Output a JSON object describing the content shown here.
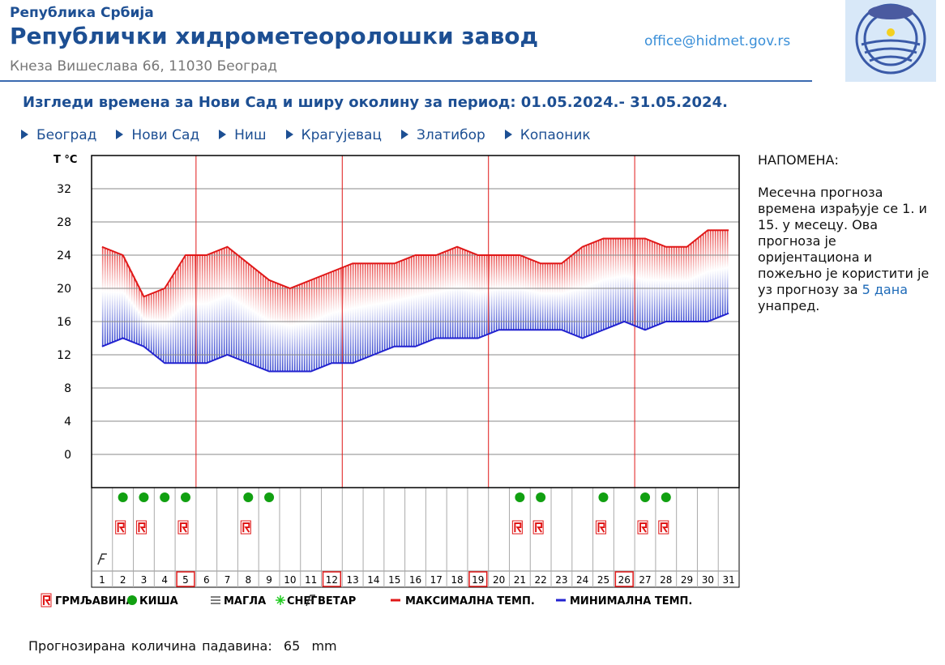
{
  "header": {
    "republic": "Република Србија",
    "institute": "Републички хидрометеоролошки завод",
    "address": "Кнеза Вишеслава 66, 11030 Београд",
    "email": "office@hidmet.gov.rs"
  },
  "title": "Изгледи времена за Нови Сад и ширу околину за период: 01.05.2024.- 31.05.2024.",
  "nav": [
    "Београд",
    "Нови Сад",
    "Ниш",
    "Крагујевац",
    "Златибор",
    "Копаоник"
  ],
  "note": {
    "heading": "НАПОМЕНА:",
    "text_before": "Месечна прогноза времена израђује се 1. и 15. у месецу. Ова прогноза је оријентациона и пожељно је користити је уз прогнозу за",
    "link": "5 дана",
    "text_after": "унапред."
  },
  "precipitation": {
    "label": "Прогнозирана количина падавина:",
    "value": 65,
    "unit": "mm"
  },
  "chart_data": {
    "type": "line",
    "y_label": "T °C",
    "categories": [
      "1",
      "2",
      "3",
      "4",
      "5",
      "6",
      "7",
      "8",
      "9",
      "10",
      "11",
      "12",
      "13",
      "14",
      "15",
      "16",
      "17",
      "18",
      "19",
      "20",
      "21",
      "22",
      "23",
      "24",
      "25",
      "26",
      "27",
      "28",
      "29",
      "30",
      "31"
    ],
    "boxed": [
      false,
      false,
      false,
      false,
      true,
      false,
      false,
      false,
      false,
      false,
      false,
      true,
      false,
      false,
      false,
      false,
      false,
      false,
      true,
      false,
      false,
      false,
      false,
      false,
      false,
      true,
      false,
      false,
      false,
      false,
      false
    ],
    "series": [
      {
        "name": "МАКСИМАЛНА ТЕМП.",
        "color": "#e01818",
        "values": [
          25,
          24,
          19,
          20,
          24,
          24,
          25,
          23,
          21,
          20,
          21,
          22,
          23,
          23,
          23,
          24,
          24,
          25,
          24,
          24,
          24,
          23,
          23,
          25,
          26,
          26,
          26,
          25,
          25,
          27,
          27
        ]
      },
      {
        "name": "МИНИМАЛНА ТЕМП.",
        "color": "#2222d0",
        "values": [
          13,
          14,
          13,
          11,
          11,
          11,
          12,
          11,
          10,
          10,
          10,
          11,
          11,
          12,
          13,
          13,
          14,
          14,
          14,
          15,
          15,
          15,
          15,
          14,
          15,
          16,
          15,
          16,
          16,
          16,
          17
        ]
      }
    ],
    "events": {
      "storm": {
        "name": "ГРМЉАВИНА",
        "color": "#e01818",
        "days": [
          false,
          true,
          true,
          false,
          true,
          false,
          false,
          true,
          false,
          false,
          false,
          false,
          false,
          false,
          false,
          false,
          false,
          false,
          false,
          false,
          true,
          true,
          false,
          false,
          true,
          false,
          true,
          true,
          false,
          false,
          false
        ]
      },
      "rain": {
        "name": "КИША",
        "color": "#11a011",
        "days": [
          false,
          true,
          true,
          true,
          true,
          false,
          false,
          true,
          true,
          false,
          false,
          false,
          false,
          false,
          false,
          false,
          false,
          false,
          false,
          false,
          true,
          true,
          false,
          false,
          true,
          false,
          true,
          true,
          false,
          false,
          false
        ]
      },
      "fog": {
        "name": "МАГЛА",
        "color": "#555555",
        "days": [
          false,
          false,
          false,
          false,
          false,
          false,
          false,
          false,
          false,
          false,
          false,
          false,
          false,
          false,
          false,
          false,
          false,
          false,
          false,
          false,
          false,
          false,
          false,
          false,
          false,
          false,
          false,
          false,
          false,
          false,
          false
        ]
      },
      "snow": {
        "name": "СНЕГ",
        "color": "#22cc22",
        "days": [
          false,
          false,
          false,
          false,
          false,
          false,
          false,
          false,
          false,
          false,
          false,
          false,
          false,
          false,
          false,
          false,
          false,
          false,
          false,
          false,
          false,
          false,
          false,
          false,
          false,
          false,
          false,
          false,
          false,
          false,
          false
        ]
      },
      "wind": {
        "name": "ВЕТАР",
        "color": "#333333",
        "days": [
          true,
          false,
          false,
          false,
          false,
          false,
          false,
          false,
          false,
          false,
          false,
          false,
          false,
          false,
          false,
          false,
          false,
          false,
          false,
          false,
          false,
          false,
          false,
          false,
          false,
          false,
          false,
          false,
          false,
          false,
          false
        ]
      }
    },
    "ylim": [
      -4,
      36
    ],
    "yticks": [
      0,
      4,
      8,
      12,
      16,
      20,
      24,
      28,
      32
    ],
    "grid": true
  }
}
